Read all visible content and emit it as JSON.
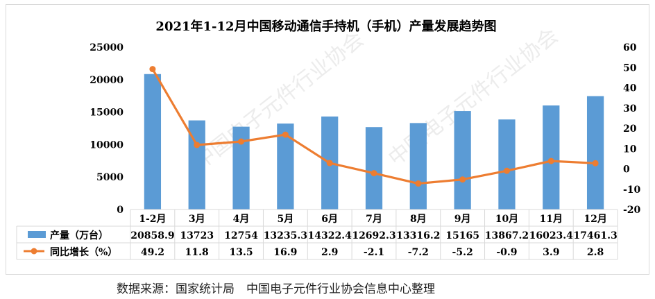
{
  "source_note": "数据来源：国家统计局　中国电子元件行业协会信息中心整理",
  "watermark_text": "中国电子元件行业协会",
  "colors": {
    "bar": "#5b9bd5",
    "line": "#ed7d31",
    "grid": "#d9d9d9",
    "text": "#000000"
  },
  "chart_data": {
    "type": "bar",
    "title": "2021年1-12月中国移动通信手持机（手机）产量发展趋势图",
    "categories": [
      "1-2月",
      "3月",
      "4月",
      "5月",
      "6月",
      "7月",
      "8月",
      "9月",
      "10月",
      "11月",
      "12月"
    ],
    "series": [
      {
        "name": "产量（万台）",
        "type": "bar",
        "axis": "left",
        "color": "#5b9bd5",
        "values": [
          20858.9,
          13723,
          12754,
          13235.3,
          14322.4,
          12692.3,
          13316.2,
          15165,
          13867.2,
          16023.4,
          17461.3
        ],
        "labels": [
          "20858.9",
          "13723",
          "12754",
          "13235.3",
          "14322.4",
          "12692.3",
          "13316.2",
          "15165",
          "13867.2",
          "16023.4",
          "17461.3"
        ]
      },
      {
        "name": "同比增长（%）",
        "type": "line",
        "axis": "right",
        "color": "#ed7d31",
        "values": [
          49.2,
          11.8,
          13.5,
          16.9,
          2.9,
          -2.1,
          -7.2,
          -5.2,
          -0.9,
          3.9,
          2.8
        ],
        "labels": [
          "49.2",
          "11.8",
          "13.5",
          "16.9",
          "2.9",
          "-2.1",
          "-7.2",
          "-5.2",
          "-0.9",
          "3.9",
          "2.8"
        ]
      }
    ],
    "y_left": {
      "min": 0,
      "max": 25000,
      "step": 5000,
      "ticks": [
        "0",
        "5000",
        "10000",
        "15000",
        "20000",
        "25000"
      ]
    },
    "y_right": {
      "min": -20,
      "max": 60,
      "step": 10,
      "ticks": [
        "-20",
        "-10",
        "0",
        "10",
        "20",
        "30",
        "40",
        "50",
        "60"
      ]
    },
    "data_table": true,
    "grid": false,
    "legend": "data-table"
  }
}
